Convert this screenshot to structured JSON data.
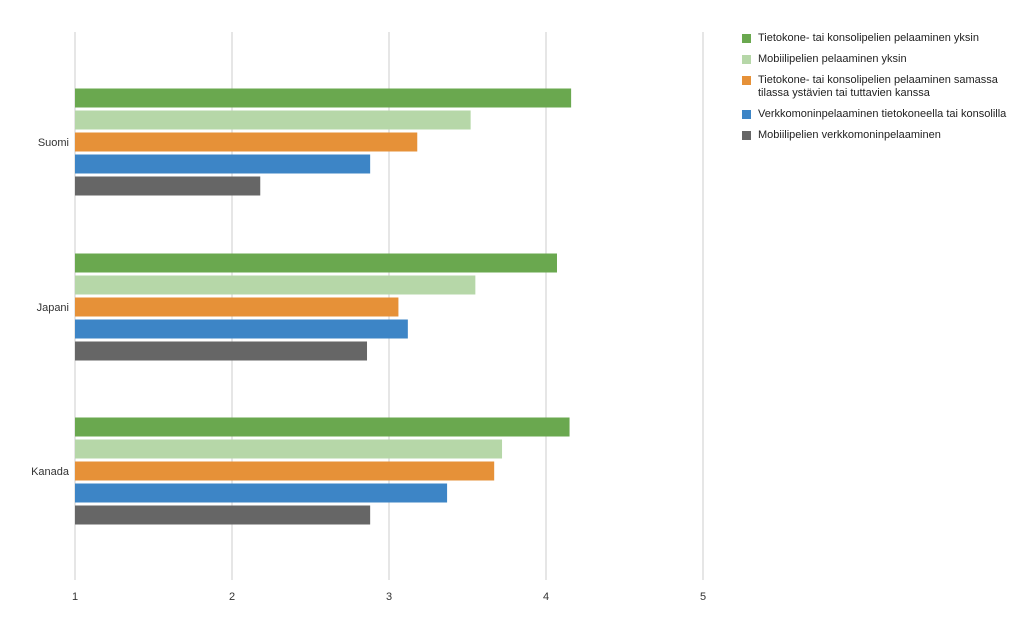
{
  "chart_data": {
    "type": "bar",
    "orientation": "horizontal",
    "title": "",
    "xlabel": "",
    "ylabel": "",
    "categories": [
      "Suomi",
      "Japani",
      "Kanada"
    ],
    "xlim": [
      1,
      5
    ],
    "xticks": [
      "1",
      "2",
      "3",
      "4",
      "5"
    ],
    "grid": true,
    "legend_position": "top-right",
    "series": [
      {
        "name": "Tietokone- tai konsolipelien pelaaminen yksin",
        "color": "#6aa84f",
        "values": [
          4.16,
          4.07,
          4.15
        ]
      },
      {
        "name": "Mobiilipelien pelaaminen yksin",
        "color": "#b6d7a8",
        "values": [
          3.52,
          3.55,
          3.72
        ]
      },
      {
        "name": "Tietokone- tai konsolipelien pelaaminen samassa tilassa ystävien tai tuttavien kanssa",
        "color": "#e69138",
        "values": [
          3.18,
          3.06,
          3.67
        ]
      },
      {
        "name": "Verkkomoninpelaaminen tietokoneella tai konsolilla",
        "color": "#3d85c6",
        "values": [
          2.88,
          3.12,
          3.37
        ]
      },
      {
        "name": "Mobiilipelien verkkomoninpelaaminen",
        "color": "#666666",
        "values": [
          2.18,
          2.86,
          2.88
        ]
      }
    ]
  }
}
